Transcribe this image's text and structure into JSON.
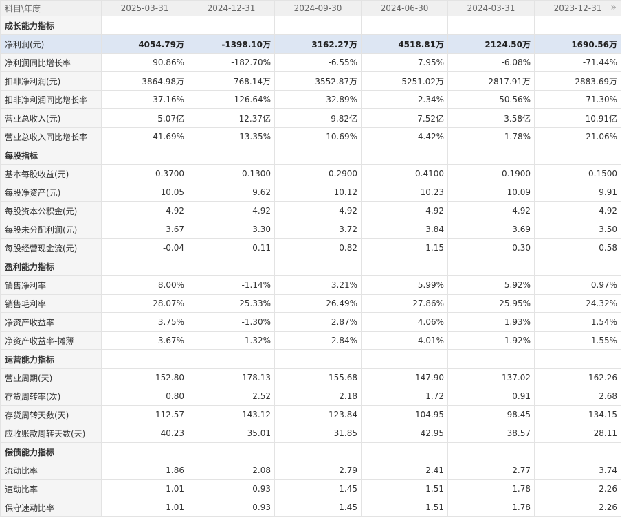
{
  "header": {
    "label": "科目\\年度",
    "periods": [
      "2025-03-31",
      "2024-12-31",
      "2024-09-30",
      "2024-06-30",
      "2024-03-31",
      "2023-12-31"
    ],
    "more_icon": "»"
  },
  "rows": [
    {
      "label": "成长能力指标",
      "section": true
    },
    {
      "label": "净利润(元)",
      "highlight": true,
      "values": [
        "4054.79万",
        "-1398.10万",
        "3162.27万",
        "4518.81万",
        "2124.50万",
        "1690.56万"
      ]
    },
    {
      "label": "净利润同比增长率",
      "values": [
        "90.86%",
        "-182.70%",
        "-6.55%",
        "7.95%",
        "-6.08%",
        "-71.44%"
      ]
    },
    {
      "label": "扣非净利润(元)",
      "values": [
        "3864.98万",
        "-768.14万",
        "3552.87万",
        "5251.02万",
        "2817.91万",
        "2883.69万"
      ]
    },
    {
      "label": "扣非净利润同比增长率",
      "values": [
        "37.16%",
        "-126.64%",
        "-32.89%",
        "-2.34%",
        "50.56%",
        "-71.30%"
      ]
    },
    {
      "label": "营业总收入(元)",
      "values": [
        "5.07亿",
        "12.37亿",
        "9.82亿",
        "7.52亿",
        "3.58亿",
        "10.91亿"
      ]
    },
    {
      "label": "营业总收入同比增长率",
      "values": [
        "41.69%",
        "13.35%",
        "10.69%",
        "4.42%",
        "1.78%",
        "-21.06%"
      ]
    },
    {
      "label": "每股指标",
      "section": true
    },
    {
      "label": "基本每股收益(元)",
      "values": [
        "0.3700",
        "-0.1300",
        "0.2900",
        "0.4100",
        "0.1900",
        "0.1500"
      ]
    },
    {
      "label": "每股净资产(元)",
      "values": [
        "10.05",
        "9.62",
        "10.12",
        "10.23",
        "10.09",
        "9.91"
      ]
    },
    {
      "label": "每股资本公积金(元)",
      "values": [
        "4.92",
        "4.92",
        "4.92",
        "4.92",
        "4.92",
        "4.92"
      ]
    },
    {
      "label": "每股未分配利润(元)",
      "values": [
        "3.67",
        "3.30",
        "3.72",
        "3.84",
        "3.69",
        "3.50"
      ]
    },
    {
      "label": "每股经营现金流(元)",
      "values": [
        "-0.04",
        "0.11",
        "0.82",
        "1.15",
        "0.30",
        "0.58"
      ]
    },
    {
      "label": "盈利能力指标",
      "section": true
    },
    {
      "label": "销售净利率",
      "values": [
        "8.00%",
        "-1.14%",
        "3.21%",
        "5.99%",
        "5.92%",
        "0.97%"
      ]
    },
    {
      "label": "销售毛利率",
      "values": [
        "28.07%",
        "25.33%",
        "26.49%",
        "27.86%",
        "25.95%",
        "24.32%"
      ]
    },
    {
      "label": "净资产收益率",
      "values": [
        "3.75%",
        "-1.30%",
        "2.87%",
        "4.06%",
        "1.93%",
        "1.54%"
      ]
    },
    {
      "label": "净资产收益率-摊薄",
      "values": [
        "3.67%",
        "-1.32%",
        "2.84%",
        "4.01%",
        "1.92%",
        "1.55%"
      ]
    },
    {
      "label": "运营能力指标",
      "section": true
    },
    {
      "label": "营业周期(天)",
      "values": [
        "152.80",
        "178.13",
        "155.68",
        "147.90",
        "137.02",
        "162.26"
      ]
    },
    {
      "label": "存货周转率(次)",
      "values": [
        "0.80",
        "2.52",
        "2.18",
        "1.72",
        "0.91",
        "2.68"
      ]
    },
    {
      "label": "存货周转天数(天)",
      "values": [
        "112.57",
        "143.12",
        "123.84",
        "104.95",
        "98.45",
        "134.15"
      ]
    },
    {
      "label": "应收账款周转天数(天)",
      "values": [
        "40.23",
        "35.01",
        "31.85",
        "42.95",
        "38.57",
        "28.11"
      ]
    },
    {
      "label": "偿债能力指标",
      "section": true
    },
    {
      "label": "流动比率",
      "values": [
        "1.86",
        "2.08",
        "2.79",
        "2.41",
        "2.77",
        "3.74"
      ]
    },
    {
      "label": "速动比率",
      "values": [
        "1.01",
        "0.93",
        "1.45",
        "1.51",
        "1.78",
        "2.26"
      ]
    },
    {
      "label": "保守速动比率",
      "values": [
        "1.01",
        "0.93",
        "1.45",
        "1.51",
        "1.78",
        "2.26"
      ]
    }
  ]
}
